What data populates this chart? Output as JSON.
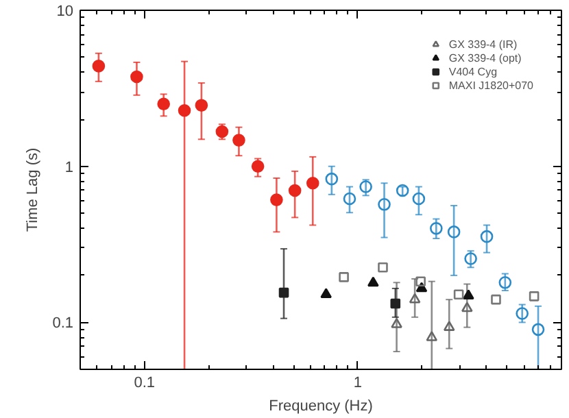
{
  "chart_data": {
    "type": "scatter",
    "xlabel": "Frequency (Hz)",
    "ylabel": "Time Lag (s)",
    "log": "xy",
    "grid": false,
    "legend": "top right",
    "xlim": [
      0.05,
      9
    ],
    "ylim": [
      0.05,
      10
    ],
    "xticks": [
      0.1,
      1
    ],
    "yticks": [
      0.1,
      1,
      10
    ],
    "series": [
      {
        "color": "#e8261c",
        "marker": "circle",
        "x": [
          0.061,
          0.092,
          0.123,
          0.154,
          0.185,
          0.231,
          0.277,
          0.34,
          0.416,
          0.507,
          0.615
        ],
        "values": [
          4.39,
          3.75,
          2.51,
          2.28,
          2.46,
          1.67,
          1.47,
          1.0,
          0.61,
          0.7,
          0.78
        ],
        "errors": [
          [
            3.5,
            5.3
          ],
          [
            2.86,
            4.64
          ],
          [
            2.1,
            2.9
          ],
          [
            0.05,
            4.7
          ],
          [
            1.49,
            3.42
          ],
          [
            1.49,
            1.86
          ],
          [
            1.17,
            1.78
          ],
          [
            0.86,
            1.12
          ],
          [
            0.38,
            0.84
          ],
          [
            0.47,
            0.93
          ],
          [
            0.42,
            1.15
          ]
        ]
      },
      {
        "color": "#2a8ac8",
        "marker": "circle_open",
        "x": [
          0.754,
          0.915,
          1.09,
          1.33,
          1.62,
          1.93,
          2.33,
          2.82,
          3.38,
          4.02,
          4.9,
          5.89,
          7.0
        ],
        "values": [
          0.83,
          0.62,
          0.74,
          0.57,
          0.7,
          0.62,
          0.4,
          0.38,
          0.256,
          0.355,
          0.18,
          0.114,
          0.09
        ],
        "errors": [
          [
            0.66,
            1.0
          ],
          [
            0.505,
            0.74
          ],
          [
            0.65,
            0.82
          ],
          [
            0.35,
            0.78
          ],
          [
            0.65,
            0.74
          ],
          [
            0.49,
            0.74
          ],
          [
            0.345,
            0.46
          ],
          [
            0.2,
            0.56
          ],
          [
            0.225,
            0.287
          ],
          [
            0.28,
            0.42
          ],
          [
            0.16,
            0.205
          ],
          [
            0.1,
            0.13
          ],
          [
            0.05,
            0.127
          ]
        ]
      },
      {
        "name": "GX 339-4 (IR)",
        "color": "#666666",
        "marker": "triangle_open",
        "x": [
          1.52,
          1.85,
          2.22,
          2.68,
          3.25
        ],
        "values": [
          0.097,
          0.14,
          0.08,
          0.093,
          0.123
        ],
        "errors": [
          [
            0.065,
            0.18
          ],
          [
            0.108,
            0.19
          ],
          [
            0.05,
            0.183
          ],
          [
            0.068,
            0.14
          ],
          [
            0.093,
            0.176
          ]
        ]
      },
      {
        "name": "GX 339-4 (opt)",
        "color": "#111111",
        "marker": "triangle",
        "x": [
          0.71,
          1.18,
          1.99,
          3.3
        ],
        "values": [
          0.151,
          0.179,
          0.165,
          0.148
        ]
      },
      {
        "name": "V404 Cyg",
        "color": "#222222",
        "marker": "square",
        "x": [
          0.45,
          1.5
        ],
        "values": [
          0.155,
          0.132
        ],
        "errors": [
          [
            0.106,
            0.296
          ],
          [
            0.108,
            0.165
          ]
        ]
      },
      {
        "name": "MAXI J1820+070",
        "color": "#777777",
        "marker": "square_open",
        "x": [
          0.86,
          1.31,
          1.97,
          2.97,
          4.44,
          6.7
        ],
        "values": [
          0.195,
          0.225,
          0.183,
          0.151,
          0.14,
          0.147
        ]
      }
    ]
  }
}
